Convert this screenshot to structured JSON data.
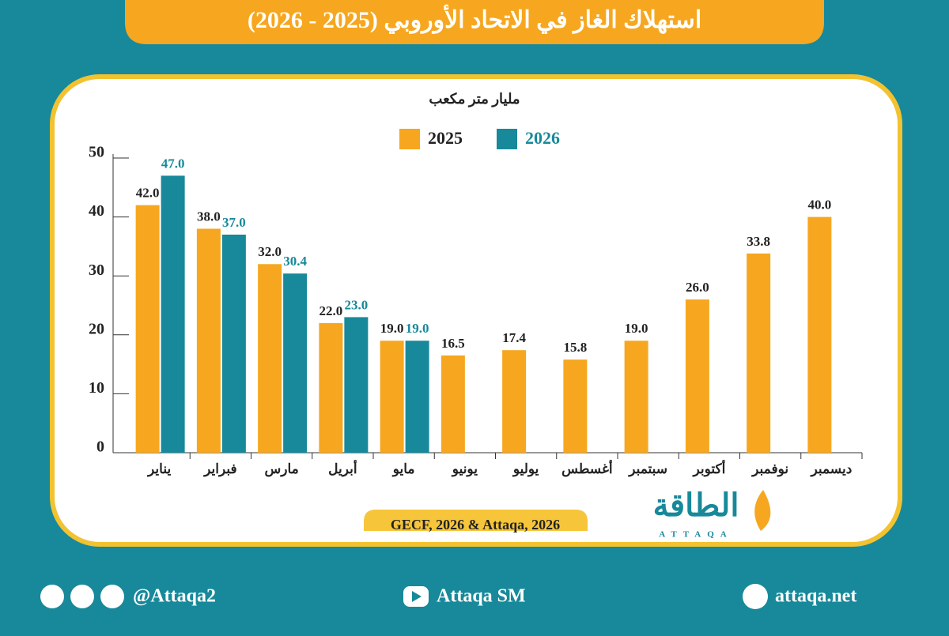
{
  "chart_data": {
    "type": "bar",
    "title": "استهلاك الغاز في الاتحاد الأوروبي (2025 - 2026)",
    "unit_label": "مليار متر مكعب",
    "source": "GECF, 2026 & Attaqa, 2026",
    "categories": [
      "يناير",
      "فبراير",
      "مارس",
      "أبريل",
      "مايو",
      "يونيو",
      "يوليو",
      "أغسطس",
      "سبتمبر",
      "أكتوبر",
      "نوفمبر",
      "ديسمبر"
    ],
    "series": [
      {
        "name": "2025",
        "color": "#f6a71f",
        "label_color": "#222222",
        "values": [
          42.0,
          38.0,
          32.0,
          22.0,
          19.0,
          16.5,
          17.4,
          15.8,
          19.0,
          26.0,
          33.8,
          40.0
        ],
        "value_labels": [
          "42.0",
          "38.0",
          "32.0",
          "22.0",
          "19.0",
          "16.5",
          "17.4",
          "15.8",
          "19.0",
          "26.0",
          "33.8",
          "40.0"
        ]
      },
      {
        "name": "2026",
        "color": "#17899a",
        "label_color": "#17899a",
        "values": [
          47.0,
          37.0,
          30.4,
          23.0,
          19.0,
          null,
          null,
          null,
          null,
          null,
          null,
          null
        ],
        "value_labels": [
          "47.0",
          "37.0",
          "30.4",
          "23.0",
          "19.0",
          null,
          null,
          null,
          null,
          null,
          null,
          null
        ]
      }
    ],
    "ylim": [
      0,
      50
    ],
    "yticks": [
      0,
      10,
      20,
      30,
      40,
      50
    ],
    "grid": false,
    "legend": "top"
  },
  "logo": {
    "name": "الطاقة",
    "latin": "ATTAQA"
  },
  "footer": {
    "social": "@Attaqa2",
    "youtube": "Attaqa SM",
    "website": "attaqa.net"
  }
}
